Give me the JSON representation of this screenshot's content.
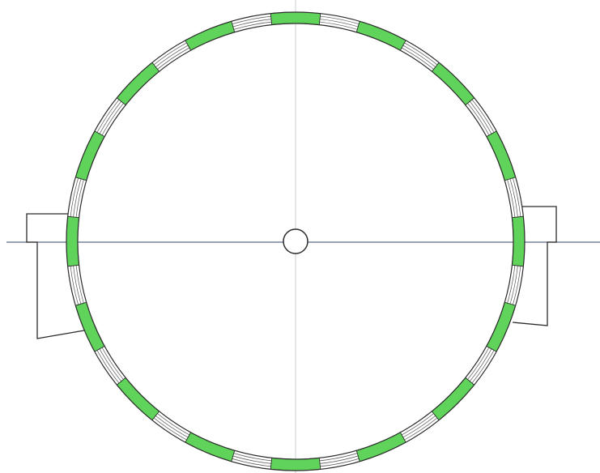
{
  "colors": {
    "background": "#ffffff",
    "segment_fill": "#5fd35a",
    "segment_stroke": "#3a8f39",
    "outline": "#2b2b2b",
    "hatch": "#555555",
    "centerline_horizontal": "#5a6a88",
    "centerline_vertical": "#c9ccd6"
  },
  "ring": {
    "segment_count": 16,
    "green_segment_start_angles_deg": [
      0,
      22.5,
      45,
      67.5,
      90,
      112.5,
      135,
      157.5,
      180,
      202.5,
      225,
      247.5,
      270,
      292.5,
      315,
      337.5
    ],
    "green_segment_span_deg": 12.5,
    "hatched_gap_span_deg": 10,
    "hatch_line_count": 3
  },
  "supports": {
    "count": 2,
    "sides": [
      "left",
      "right"
    ]
  },
  "center_marker": "circle",
  "icons": {
    "center": "center-circle-icon"
  }
}
